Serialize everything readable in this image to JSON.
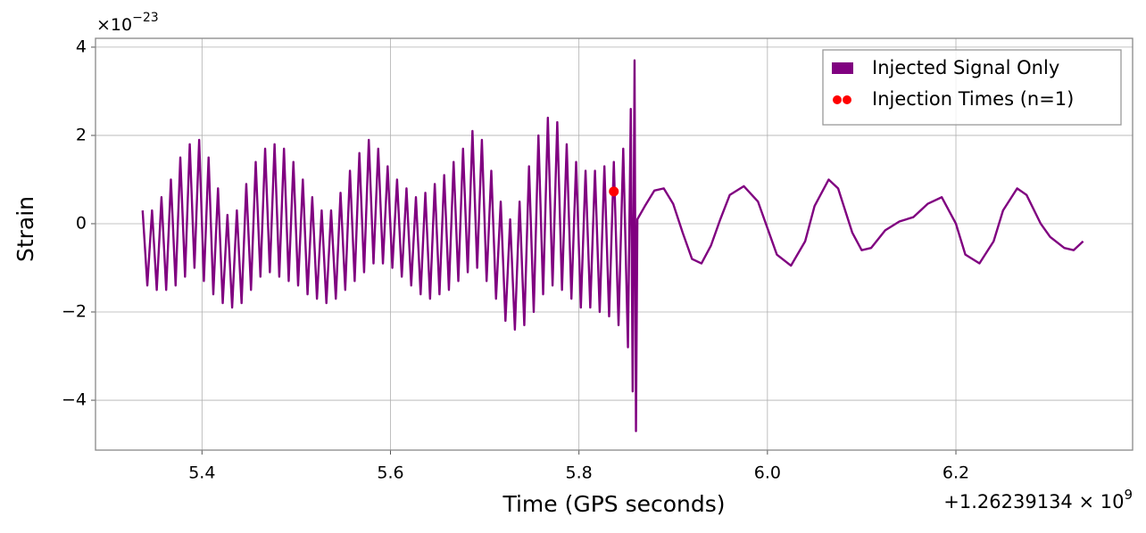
{
  "chart_data": {
    "type": "line",
    "xlabel": "Time (GPS seconds)",
    "ylabel": "Strain",
    "y_offset_label": {
      "base": "×10",
      "exponent": "−23"
    },
    "x_offset_label": {
      "prefix": "+1.26239134 × 10",
      "exponent": "9"
    },
    "xlim": [
      5.287,
      6.3875
    ],
    "ylim": [
      -5.13,
      4.2
    ],
    "xticks": [
      5.4,
      5.6,
      5.8,
      {
        "value": 6,
        "label": "6.0"
      },
      6.2
    ],
    "yticks": [
      {
        "value": -4,
        "label": "−4"
      },
      {
        "value": -2,
        "label": "−2"
      },
      0,
      2,
      4
    ],
    "grid": true,
    "legend": "upper right",
    "series": [
      {
        "name": "Injected Signal Only",
        "color": "#800080",
        "type": "line",
        "x": [
          5.337,
          5.342,
          5.347,
          5.352,
          5.357,
          5.362,
          5.367,
          5.372,
          5.377,
          5.382,
          5.387,
          5.392,
          5.397,
          5.402,
          5.407,
          5.412,
          5.417,
          5.422,
          5.427,
          5.432,
          5.437,
          5.442,
          5.447,
          5.452,
          5.457,
          5.462,
          5.467,
          5.472,
          5.477,
          5.482,
          5.487,
          5.492,
          5.497,
          5.502,
          5.507,
          5.512,
          5.517,
          5.522,
          5.527,
          5.532,
          5.537,
          5.542,
          5.547,
          5.552,
          5.557,
          5.562,
          5.567,
          5.572,
          5.577,
          5.582,
          5.587,
          5.592,
          5.597,
          5.602,
          5.607,
          5.612,
          5.617,
          5.622,
          5.627,
          5.632,
          5.637,
          5.642,
          5.647,
          5.652,
          5.657,
          5.662,
          5.667,
          5.672,
          5.677,
          5.682,
          5.687,
          5.692,
          5.697,
          5.702,
          5.707,
          5.712,
          5.717,
          5.722,
          5.727,
          5.732,
          5.737,
          5.742,
          5.747,
          5.752,
          5.757,
          5.762,
          5.767,
          5.772,
          5.777,
          5.782,
          5.787,
          5.792,
          5.797,
          5.802,
          5.807,
          5.812,
          5.817,
          5.822,
          5.827,
          5.832,
          5.837,
          5.842,
          5.847,
          5.852,
          5.855,
          5.857,
          5.859,
          5.8605,
          5.862,
          5.87,
          5.88,
          5.89,
          5.9,
          5.91,
          5.92,
          5.93,
          5.94,
          5.95,
          5.96,
          5.975,
          5.99,
          6.0,
          6.01,
          6.025,
          6.04,
          6.05,
          6.065,
          6.075,
          6.09,
          6.1,
          6.11,
          6.125,
          6.14,
          6.155,
          6.17,
          6.185,
          6.2,
          6.21,
          6.225,
          6.24,
          6.25,
          6.265,
          6.275,
          6.29,
          6.3,
          6.315,
          6.325,
          6.335
        ],
        "values": [
          0.3,
          -1.4,
          0.3,
          -1.5,
          0.6,
          -1.5,
          1.0,
          -1.4,
          1.5,
          -1.2,
          1.8,
          -1.0,
          1.9,
          -1.3,
          1.5,
          -1.6,
          0.8,
          -1.8,
          0.2,
          -1.9,
          0.3,
          -1.8,
          0.9,
          -1.5,
          1.4,
          -1.2,
          1.7,
          -1.1,
          1.8,
          -1.2,
          1.7,
          -1.3,
          1.4,
          -1.4,
          1.0,
          -1.6,
          0.6,
          -1.7,
          0.3,
          -1.8,
          0.3,
          -1.7,
          0.7,
          -1.5,
          1.2,
          -1.3,
          1.6,
          -1.1,
          1.9,
          -0.9,
          1.7,
          -0.9,
          1.3,
          -1.0,
          1.0,
          -1.2,
          0.8,
          -1.4,
          0.6,
          -1.6,
          0.7,
          -1.7,
          0.9,
          -1.6,
          1.1,
          -1.5,
          1.4,
          -1.3,
          1.7,
          -1.1,
          2.1,
          -1.0,
          1.9,
          -1.3,
          1.2,
          -1.7,
          0.5,
          -2.2,
          0.1,
          -2.4,
          0.5,
          -2.3,
          1.3,
          -2.0,
          2.0,
          -1.6,
          2.4,
          -1.4,
          2.3,
          -1.5,
          1.8,
          -1.7,
          1.4,
          -1.9,
          1.2,
          -1.9,
          1.2,
          -2.0,
          1.3,
          -2.1,
          1.4,
          -2.3,
          1.7,
          -2.8,
          2.6,
          -3.8,
          3.7,
          -4.7,
          0.1,
          0.4,
          0.75,
          0.8,
          0.45,
          -0.2,
          -0.8,
          -0.9,
          -0.5,
          0.1,
          0.65,
          0.85,
          0.5,
          -0.1,
          -0.7,
          -0.95,
          -0.4,
          0.4,
          1.0,
          0.8,
          -0.2,
          -0.6,
          -0.55,
          -0.15,
          0.05,
          0.15,
          0.45,
          0.6,
          0.0,
          -0.7,
          -0.9,
          -0.4,
          0.3,
          0.8,
          0.65,
          0.0,
          -0.3,
          -0.55,
          -0.6,
          -0.4
        ]
      },
      {
        "name": "Injection Times (n=1)",
        "color": "#ff0000",
        "type": "scatter",
        "x": [
          5.837
        ],
        "values": [
          0.73
        ]
      }
    ]
  }
}
